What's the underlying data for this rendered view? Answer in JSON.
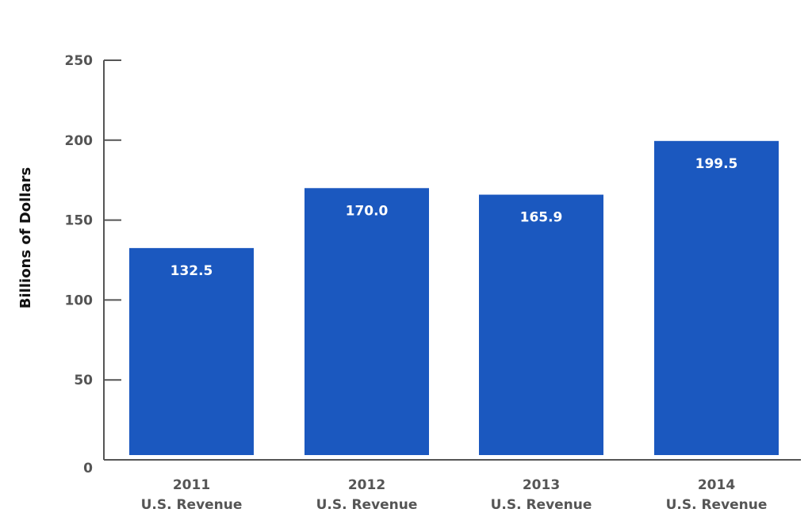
{
  "chart_data": {
    "type": "bar",
    "title": "",
    "xlabel": "",
    "ylabel": "Billions of Dollars",
    "ylim": [
      0,
      250
    ],
    "yticks": [
      0,
      50,
      100,
      150,
      200,
      250
    ],
    "grid": false,
    "categories": [
      {
        "year": "2011",
        "label": "U.S. Revenue"
      },
      {
        "year": "2012",
        "label": "U.S. Revenue"
      },
      {
        "year": "2013",
        "label": "U.S. Revenue"
      },
      {
        "year": "2014",
        "label": "U.S. Revenue"
      }
    ],
    "values": [
      132.5,
      170.0,
      165.9,
      199.5
    ],
    "data_labels": [
      "132.5",
      "170.0",
      "165.9",
      "199.5"
    ],
    "bar_color": "#1b58bf",
    "axis_color": "#555555"
  }
}
